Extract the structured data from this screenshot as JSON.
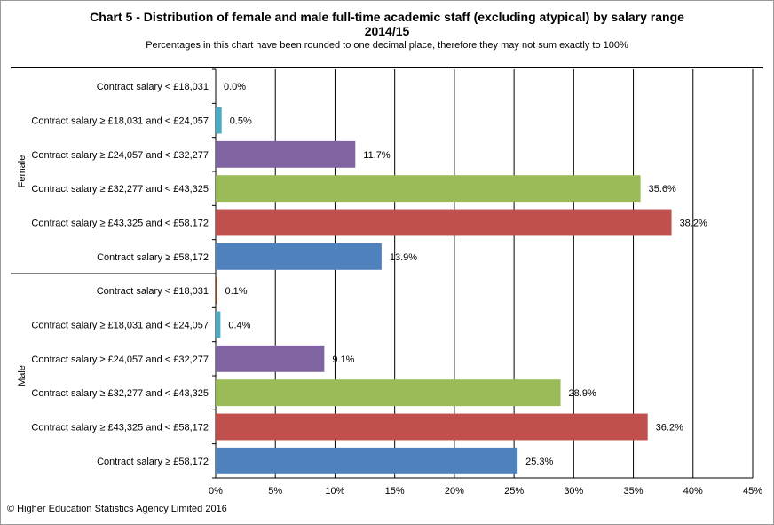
{
  "title_line1": "Chart 5 - Distribution  of female and male full-time academic staff (excluding atypical) by salary range",
  "title_line2": "2014/15",
  "subtitle": "Percentages in this chart have been rounded to one decimal place, therefore they may not sum exactly to 100%",
  "footer": "© Higher Education Statistics Agency Limited 2016",
  "colors": {
    "band_lt_18031": "#8B4513",
    "band_18031_24057": "#4BACC6",
    "band_24057_32277": "#8064A2",
    "band_32277_43325": "#9BBB59",
    "band_43325_58172": "#C0504D",
    "band_gte_58172": "#4F81BD"
  },
  "chart_data": {
    "type": "bar",
    "orientation": "horizontal",
    "title": "Chart 5 - Distribution  of female and male full-time academic staff (excluding atypical) by salary range 2014/15",
    "xlabel": "",
    "ylabel": "",
    "xlim": [
      0,
      45
    ],
    "x_ticks": [
      "0%",
      "5%",
      "10%",
      "15%",
      "20%",
      "25%",
      "30%",
      "35%",
      "40%",
      "45%"
    ],
    "grid": "vertical",
    "categories": [
      "Contract salary < £18,031",
      "Contract salary ≥ £18,031 and < £24,057",
      "Contract salary ≥ £24,057 and < £32,277",
      "Contract salary ≥ £32,277 and < £43,325",
      "Contract salary ≥ £43,325 and < £58,172",
      "Contract salary ≥ £58,172"
    ],
    "groups": [
      {
        "name": "Female",
        "values": [
          0.0,
          0.5,
          11.7,
          35.6,
          38.2,
          13.9
        ],
        "labels": [
          "0.0%",
          "0.5%",
          "11.7%",
          "35.6%",
          "38.2%",
          "13.9%"
        ]
      },
      {
        "name": "Male",
        "values": [
          0.1,
          0.4,
          9.1,
          28.9,
          36.2,
          25.3
        ],
        "labels": [
          "0.1%",
          "0.4%",
          "9.1%",
          "28.9%",
          "36.2%",
          "25.3%"
        ]
      }
    ]
  }
}
